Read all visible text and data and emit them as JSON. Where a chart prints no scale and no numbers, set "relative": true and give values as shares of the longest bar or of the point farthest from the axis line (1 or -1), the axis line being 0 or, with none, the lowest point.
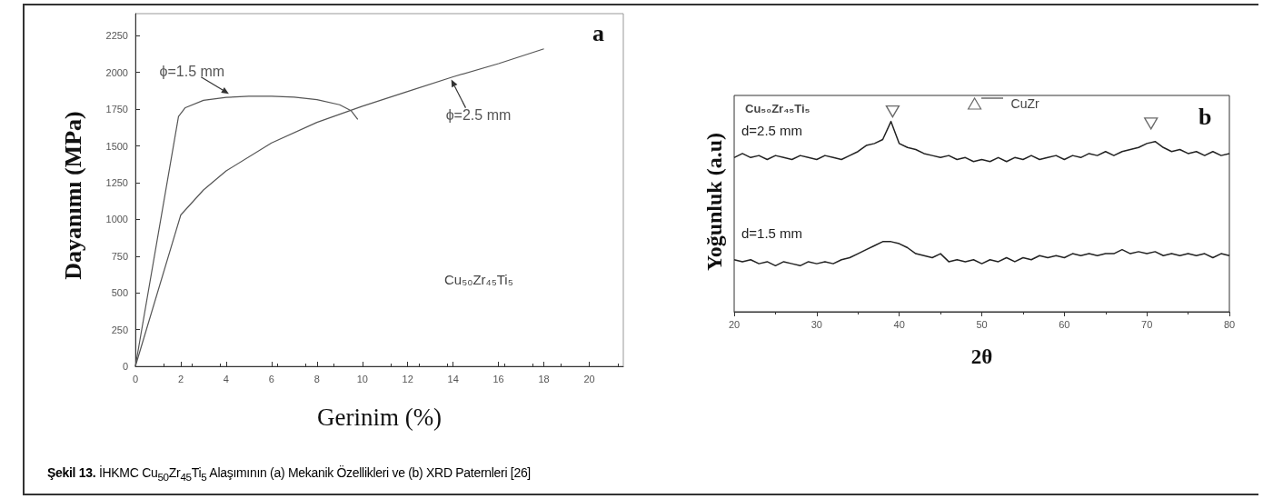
{
  "chart_data": [
    {
      "type": "line",
      "xlabel": "Gerinim (%)",
      "ylabel": "Dayanımı (MPa)",
      "xlim": [
        0,
        21.5
      ],
      "ylim": [
        0,
        2400
      ],
      "xticks": [
        0,
        2,
        4,
        6,
        8,
        10,
        12,
        14,
        16,
        18,
        20
      ],
      "yticks": [
        0,
        250,
        500,
        750,
        1000,
        1250,
        1500,
        1750,
        2000,
        2250
      ],
      "series": [
        {
          "name": "ϕ=1.5 mm",
          "color": "#555555",
          "x": [
            0,
            1.9,
            2.2,
            3,
            4,
            5,
            6,
            7,
            8,
            9,
            9.5,
            9.8
          ],
          "values": [
            0,
            1700,
            1760,
            1810,
            1830,
            1838,
            1838,
            1832,
            1815,
            1780,
            1740,
            1680
          ]
        },
        {
          "name": "ϕ=2.5 mm",
          "color": "#555555",
          "x": [
            0,
            2,
            3,
            4,
            6,
            8,
            10,
            12,
            14,
            16,
            18
          ],
          "values": [
            0,
            1030,
            1200,
            1330,
            1520,
            1660,
            1770,
            1870,
            1970,
            2060,
            2160
          ]
        }
      ],
      "annotations": [
        "a",
        "Cu₅₀Zr₄₅Ti₅",
        "Şekil 13. İHKMC Cu$_{50}$Zr$_{45}$Ti$_{5}$ Alaşımının (a) Mekanik Özellikleri ve (b) XRD Paternleri [26]"
      ]
    },
    {
      "type": "line",
      "relative": true,
      "xlabel": "2θ",
      "ylabel": "Yoğunluk (a.u)",
      "xlim": [
        20,
        80
      ],
      "xticks": [
        20,
        30,
        40,
        50,
        60,
        70,
        80
      ],
      "legend": "top",
      "series": [
        {
          "name": "d=2.5 mm",
          "color": "#222222",
          "x": [
            20,
            21,
            22,
            23,
            24,
            25,
            26,
            27,
            28,
            29,
            30,
            31,
            32,
            33,
            34,
            35,
            36,
            37,
            38,
            39,
            40,
            41,
            42,
            43,
            44,
            45,
            46,
            47,
            48,
            49,
            50,
            51,
            52,
            53,
            54,
            55,
            56,
            57,
            58,
            59,
            60,
            61,
            62,
            63,
            64,
            65,
            66,
            67,
            68,
            69,
            70,
            71,
            72,
            73,
            74,
            75,
            76,
            77,
            78,
            79,
            80
          ],
          "values": [
            0.77,
            0.79,
            0.77,
            0.78,
            0.76,
            0.78,
            0.77,
            0.76,
            0.78,
            0.77,
            0.76,
            0.78,
            0.77,
            0.76,
            0.78,
            0.8,
            0.83,
            0.84,
            0.86,
            0.95,
            0.84,
            0.82,
            0.81,
            0.79,
            0.78,
            0.77,
            0.78,
            0.76,
            0.77,
            0.75,
            0.76,
            0.75,
            0.77,
            0.75,
            0.77,
            0.76,
            0.78,
            0.76,
            0.77,
            0.78,
            0.76,
            0.78,
            0.77,
            0.79,
            0.78,
            0.8,
            0.78,
            0.8,
            0.81,
            0.82,
            0.84,
            0.85,
            0.82,
            0.8,
            0.81,
            0.79,
            0.8,
            0.78,
            0.8,
            0.78,
            0.79
          ]
        },
        {
          "name": "d=1.5 mm",
          "color": "#222222",
          "x": [
            20,
            21,
            22,
            23,
            24,
            25,
            26,
            27,
            28,
            29,
            30,
            31,
            32,
            33,
            34,
            35,
            36,
            37,
            38,
            39,
            40,
            41,
            42,
            43,
            44,
            45,
            46,
            47,
            48,
            49,
            50,
            51,
            52,
            53,
            54,
            55,
            56,
            57,
            58,
            59,
            60,
            61,
            62,
            63,
            64,
            65,
            66,
            67,
            68,
            69,
            70,
            71,
            72,
            73,
            74,
            75,
            76,
            77,
            78,
            79,
            80
          ],
          "values": [
            0.26,
            0.25,
            0.26,
            0.24,
            0.25,
            0.23,
            0.25,
            0.24,
            0.23,
            0.25,
            0.24,
            0.25,
            0.24,
            0.26,
            0.27,
            0.29,
            0.31,
            0.33,
            0.35,
            0.35,
            0.34,
            0.32,
            0.29,
            0.28,
            0.27,
            0.29,
            0.25,
            0.26,
            0.25,
            0.26,
            0.24,
            0.26,
            0.25,
            0.27,
            0.25,
            0.27,
            0.26,
            0.28,
            0.27,
            0.28,
            0.27,
            0.29,
            0.28,
            0.29,
            0.28,
            0.29,
            0.29,
            0.31,
            0.29,
            0.3,
            0.29,
            0.3,
            0.28,
            0.29,
            0.28,
            0.29,
            0.28,
            0.29,
            0.27,
            0.29,
            0.28
          ]
        },
        {
          "type": "scatter",
          "name": "CuZr",
          "color": "#444444",
          "marker": "triangle",
          "x": [
            39.2,
            70.5
          ],
          "values": [
            1,
            0.94
          ]
        }
      ],
      "annotations": [
        "b",
        "Cu₅₀Zr₄₅Ti₅"
      ]
    }
  ]
}
